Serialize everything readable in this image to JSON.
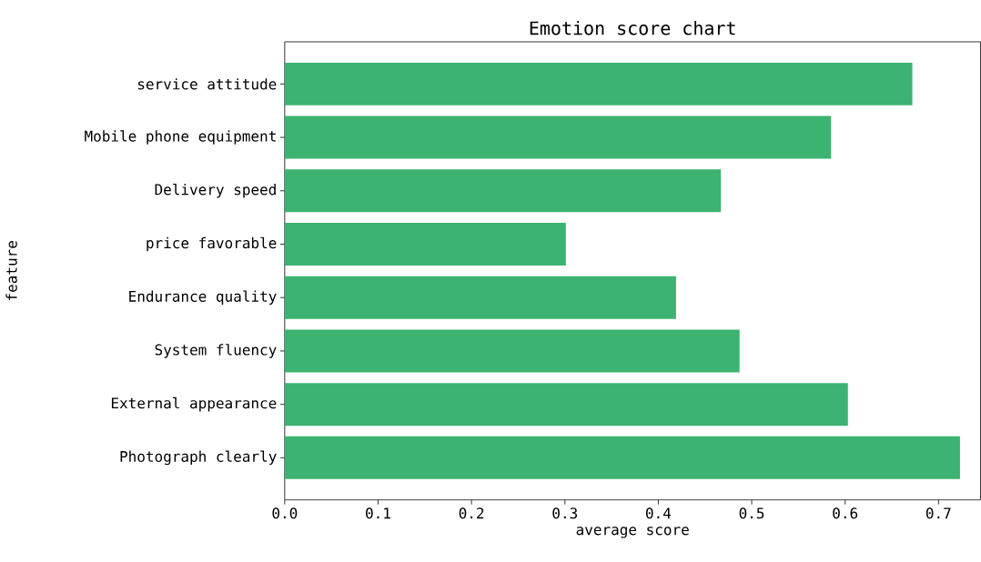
{
  "chart_data": {
    "type": "bar",
    "orientation": "horizontal",
    "title": "Emotion score chart",
    "xlabel": "average score",
    "ylabel": "feature",
    "categories": [
      "service attitude",
      "Mobile phone equipment",
      "Delivery speed",
      "price favorable",
      "Endurance quality",
      "System fluency",
      "External appearance",
      "Photograph clearly"
    ],
    "values": [
      0.672,
      0.585,
      0.467,
      0.301,
      0.419,
      0.487,
      0.603,
      0.723
    ],
    "color": "#3cb371",
    "xlim": [
      0,
      0.745
    ],
    "xticks": [
      {
        "value": 0,
        "label": "0.0"
      },
      {
        "value": 0.1,
        "label": "0.1"
      },
      {
        "value": 0.2,
        "label": "0.2"
      },
      {
        "value": 0.3,
        "label": "0.3"
      },
      {
        "value": 0.4,
        "label": "0.4"
      },
      {
        "value": 0.5,
        "label": "0.5"
      },
      {
        "value": 0.6,
        "label": "0.6"
      },
      {
        "value": 0.7,
        "label": "0.7"
      }
    ]
  }
}
